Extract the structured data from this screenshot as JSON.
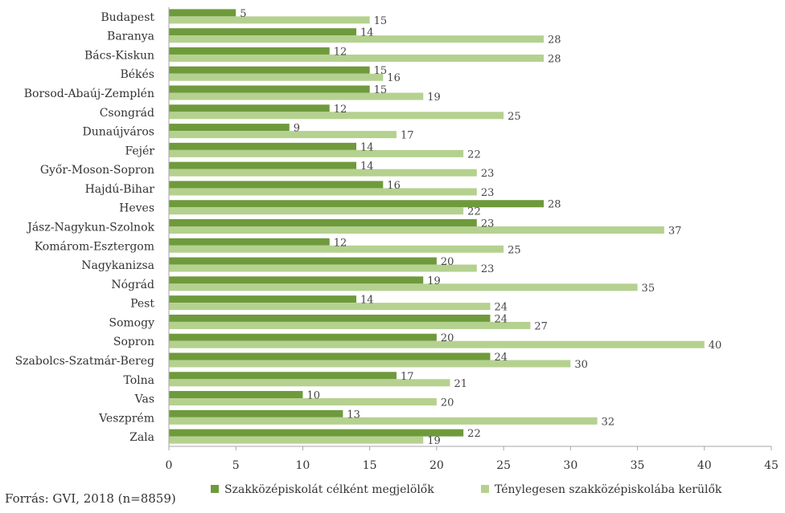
{
  "chart_data": {
    "type": "bar",
    "orientation": "horizontal",
    "categories": [
      "Budapest",
      "Baranya",
      "Bács-Kiskun",
      "Békés",
      "Borsod-Abaúj-Zemplén",
      "Csongrád",
      "Dunaújváros",
      "Fejér",
      "Győr-Moson-Sopron",
      "Hajdú-Bihar",
      "Heves",
      "Jász-Nagykun-Szolnok",
      "Komárom-Esztergom",
      "Nagykanizsa",
      "Nógrád",
      "Pest",
      "Somogy",
      "Sopron",
      "Szabolcs-Szatmár-Bereg",
      "Tolna",
      "Vas",
      "Veszprém",
      "Zala"
    ],
    "series": [
      {
        "name": "Szakközépiskolát célként megjelölők",
        "color": "#6e9a3c",
        "values": [
          5,
          14,
          12,
          15,
          15,
          12,
          9,
          14,
          14,
          16,
          28,
          23,
          12,
          20,
          19,
          14,
          24,
          20,
          24,
          17,
          10,
          13,
          22
        ]
      },
      {
        "name": "Ténylegesen szakközépiskolába kerülők",
        "color": "#b5d18f",
        "values": [
          15,
          28,
          28,
          16,
          19,
          25,
          17,
          22,
          23,
          23,
          22,
          37,
          25,
          23,
          35,
          24,
          27,
          40,
          30,
          21,
          20,
          32,
          19
        ]
      }
    ],
    "xlim": [
      0,
      45
    ],
    "xticks": [
      0,
      5,
      10,
      15,
      20,
      25,
      30,
      35,
      40,
      45
    ],
    "legend_position": "bottom",
    "grid": false
  },
  "source": "Forrás: GVI, 2018 (n=8859)"
}
